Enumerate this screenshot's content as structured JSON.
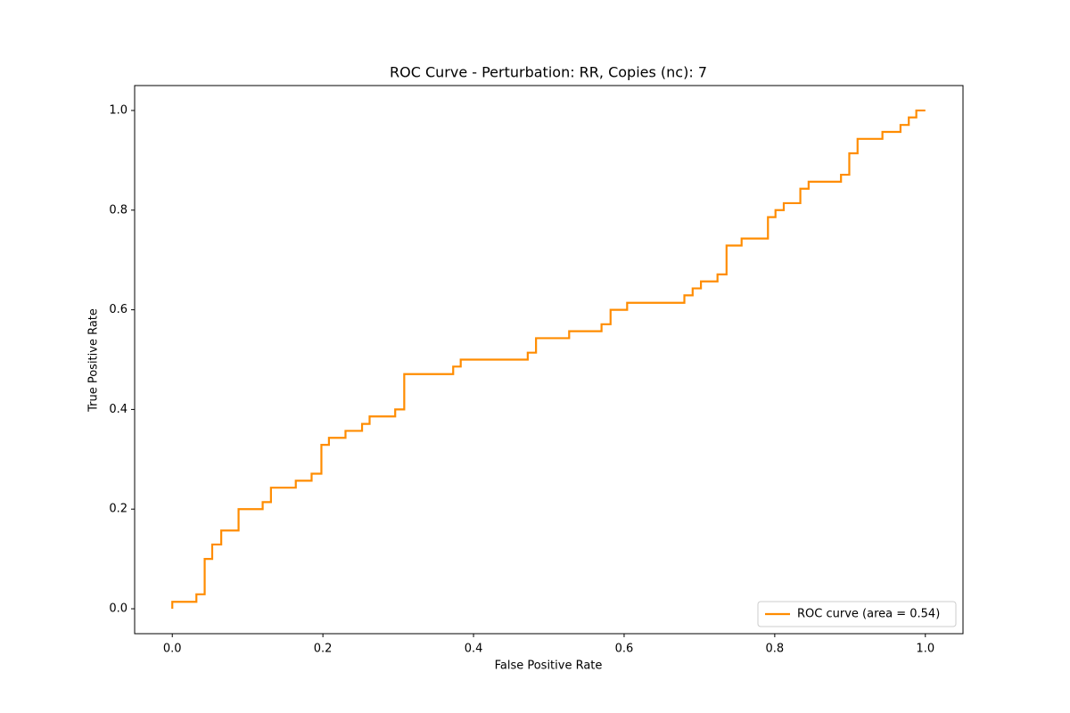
{
  "chart_data": {
    "type": "line",
    "title": "ROC Curve - Perturbation: RR, Copies (nc): 7",
    "xlabel": "False Positive Rate",
    "ylabel": "True Positive Rate",
    "xlim": [
      -0.05,
      1.05
    ],
    "ylim": [
      -0.05,
      1.05
    ],
    "xticks": [
      {
        "value": 0,
        "label": "0.0"
      },
      0.2,
      0.4,
      0.6,
      0.8,
      {
        "value": 1,
        "label": "1.0"
      }
    ],
    "yticks": [
      {
        "value": 0,
        "label": "0.0"
      },
      0.2,
      0.4,
      0.6,
      0.8,
      {
        "value": 1,
        "label": "1.0"
      }
    ],
    "grid": false,
    "legend": "lower right",
    "x": [
      0,
      0,
      0.032,
      0.032,
      0.043,
      0.043,
      0.053,
      0.053,
      0.065,
      0.065,
      0.088,
      0.088,
      0.12,
      0.12,
      0.131,
      0.131,
      0.164,
      0.164,
      0.185,
      0.185,
      0.198,
      0.198,
      0.208,
      0.208,
      0.23,
      0.23,
      0.252,
      0.252,
      0.262,
      0.262,
      0.296,
      0.296,
      0.308,
      0.308,
      0.373,
      0.373,
      0.383,
      0.383,
      0.472,
      0.472,
      0.483,
      0.483,
      0.527,
      0.527,
      0.57,
      0.57,
      0.582,
      0.582,
      0.604,
      0.604,
      0.68,
      0.68,
      0.691,
      0.691,
      0.702,
      0.702,
      0.724,
      0.724,
      0.736,
      0.736,
      0.756,
      0.756,
      0.791,
      0.791,
      0.801,
      0.801,
      0.812,
      0.812,
      0.834,
      0.834,
      0.845,
      0.845,
      0.888,
      0.888,
      0.899,
      0.899,
      0.91,
      0.91,
      0.943,
      0.943,
      0.967,
      0.967,
      0.978,
      0.978,
      0.988,
      0.988,
      1.0
    ],
    "series": [
      {
        "name": "ROC curve (area = 0.54)",
        "color": "#ff8c00",
        "values": [
          0,
          0.014,
          0.014,
          0.029,
          0.029,
          0.1,
          0.1,
          0.129,
          0.129,
          0.157,
          0.157,
          0.2,
          0.2,
          0.214,
          0.214,
          0.243,
          0.243,
          0.257,
          0.257,
          0.271,
          0.271,
          0.329,
          0.329,
          0.343,
          0.343,
          0.357,
          0.357,
          0.371,
          0.371,
          0.386,
          0.386,
          0.4,
          0.4,
          0.471,
          0.471,
          0.486,
          0.486,
          0.5,
          0.5,
          0.514,
          0.514,
          0.543,
          0.543,
          0.557,
          0.557,
          0.571,
          0.571,
          0.6,
          0.6,
          0.614,
          0.614,
          0.629,
          0.629,
          0.643,
          0.643,
          0.657,
          0.657,
          0.671,
          0.671,
          0.729,
          0.729,
          0.743,
          0.743,
          0.786,
          0.786,
          0.8,
          0.8,
          0.814,
          0.814,
          0.843,
          0.843,
          0.857,
          0.857,
          0.871,
          0.871,
          0.914,
          0.914,
          0.943,
          0.943,
          0.957,
          0.957,
          0.971,
          0.971,
          0.986,
          0.986,
          1.0,
          1.0
        ]
      }
    ]
  }
}
